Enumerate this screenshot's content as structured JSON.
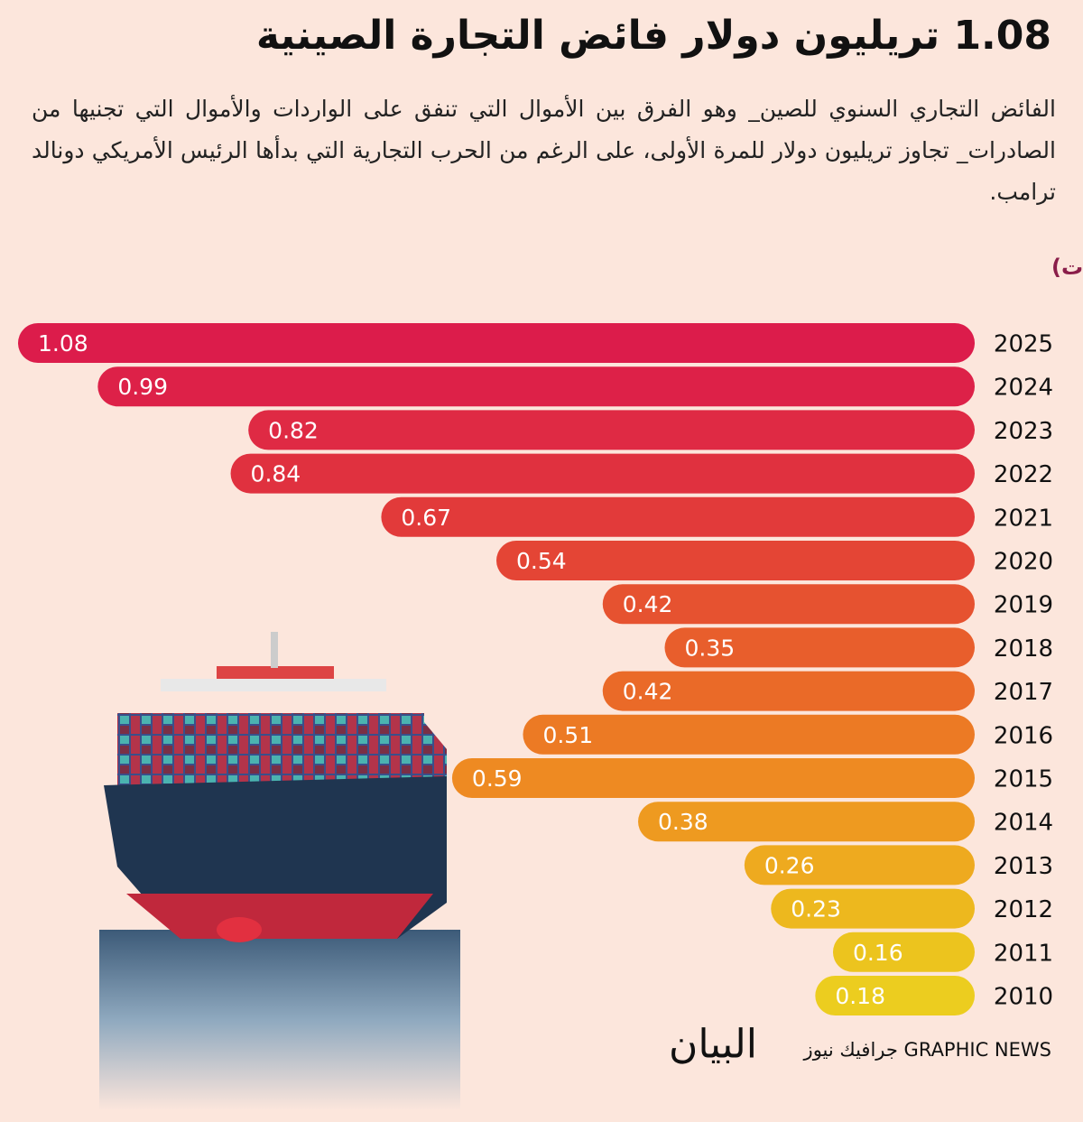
{
  "title": "1.08 تريليون دولار فائض التجارة الصينية",
  "subtitle": "الفائض التجاري السنوي للصين_ وهو الفرق بين الأموال التي تنفق على الواردات والأموال التي تجنيها من الصادرات_ تجاوز تريليون دولار للمرة الأولى، على الرغم من الحرب التجارية التي بدأها الرئيس الأمريكي دونالد ترامب.",
  "chart_data": {
    "type": "bar",
    "orientation": "horizontal",
    "title": "الفائض التجاري السنوي للصين (تريليونات الدولارات)",
    "categories": [
      "2025",
      "2024",
      "2023",
      "2022",
      "2021",
      "2020",
      "2019",
      "2018",
      "2017",
      "2016",
      "2015",
      "2014",
      "2013",
      "2012",
      "2011",
      "2010"
    ],
    "values": [
      1.08,
      0.99,
      0.82,
      0.84,
      0.67,
      0.54,
      0.42,
      0.35,
      0.42,
      0.51,
      0.59,
      0.38,
      0.26,
      0.23,
      0.16,
      0.18
    ],
    "colors": [
      "#dc1c4b",
      "#dd2148",
      "#df2a44",
      "#e0313f",
      "#e23a3a",
      "#e44535",
      "#e65230",
      "#e85e2c",
      "#ea6a28",
      "#ec7a24",
      "#ee8a22",
      "#ee9a20",
      "#eeaa1f",
      "#edb81e",
      "#ecc41e",
      "#eccd1f"
    ]
  },
  "footer": {
    "source": "جرافيك نيوز GRAPHIC NEWS",
    "logo": "البيان"
  }
}
